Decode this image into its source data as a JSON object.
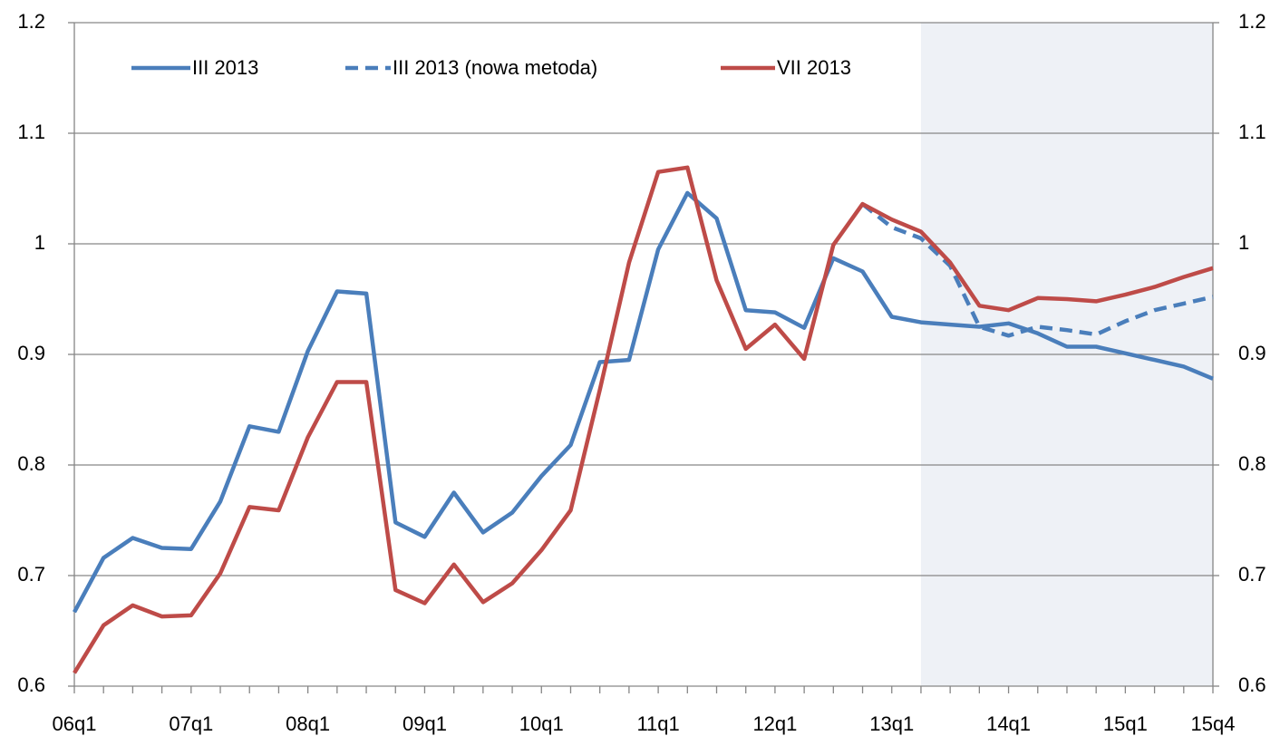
{
  "chart_data": {
    "type": "line",
    "categories": [
      "06q1",
      null,
      null,
      null,
      "07q1",
      null,
      null,
      null,
      "08q1",
      null,
      null,
      null,
      "09q1",
      null,
      null,
      null,
      "10q1",
      null,
      null,
      null,
      "11q1",
      null,
      null,
      null,
      "12q1",
      null,
      null,
      null,
      "13q1",
      null,
      null,
      null,
      "14q1",
      null,
      null,
      null,
      "15q1",
      null,
      null,
      "15q4"
    ],
    "series": [
      {
        "name": "III 2013",
        "color": "#4a7ebb",
        "dashed": false,
        "values": [
          0.667,
          0.716,
          0.734,
          0.725,
          0.724,
          0.767,
          0.835,
          0.83,
          0.903,
          0.957,
          0.955,
          0.748,
          0.735,
          0.775,
          0.739,
          0.757,
          0.79,
          0.818,
          0.893,
          0.895,
          0.995,
          1.046,
          1.023,
          0.94,
          0.938,
          0.924,
          0.987,
          0.975,
          0.934,
          0.929,
          0.927,
          0.925,
          0.928,
          0.919,
          0.907,
          0.907,
          0.901,
          0.895,
          0.889,
          0.878
        ]
      },
      {
        "name": "III 2013 (nowa metoda)",
        "color": "#4a7ebb",
        "dashed": true,
        "values": [
          null,
          null,
          null,
          null,
          null,
          null,
          null,
          null,
          null,
          null,
          null,
          null,
          null,
          null,
          null,
          null,
          null,
          null,
          null,
          null,
          null,
          null,
          null,
          null,
          null,
          null,
          null,
          1.036,
          1.015,
          1.005,
          0.98,
          0.925,
          0.917,
          0.925,
          0.922,
          0.918,
          0.93,
          0.94,
          0.946,
          0.952
        ]
      },
      {
        "name": "VII 2013",
        "color": "#be4b48",
        "dashed": false,
        "values": [
          0.612,
          0.655,
          0.673,
          0.663,
          0.664,
          0.702,
          0.762,
          0.759,
          0.825,
          0.875,
          0.875,
          0.687,
          0.675,
          0.71,
          0.676,
          0.693,
          0.723,
          0.759,
          0.868,
          0.983,
          1.065,
          1.069,
          0.967,
          0.905,
          0.927,
          0.896,
          0.999,
          1.036,
          1.022,
          1.011,
          0.983,
          0.944,
          0.94,
          0.951,
          0.95,
          0.948,
          0.954,
          0.961,
          0.97,
          0.978
        ]
      }
    ],
    "ylim": [
      0.6,
      1.2
    ],
    "yticks": [
      0.6,
      0.7,
      0.8,
      0.9,
      1,
      1.1,
      1.2
    ],
    "y2lim": [
      0.6,
      1.2
    ],
    "y2ticks": [
      0.6,
      0.7,
      0.8,
      0.9,
      1,
      1.1,
      1.2
    ],
    "grid": true,
    "shade": {
      "from": 29,
      "to": 39,
      "color": "#eef1f6"
    },
    "legend": "top"
  }
}
